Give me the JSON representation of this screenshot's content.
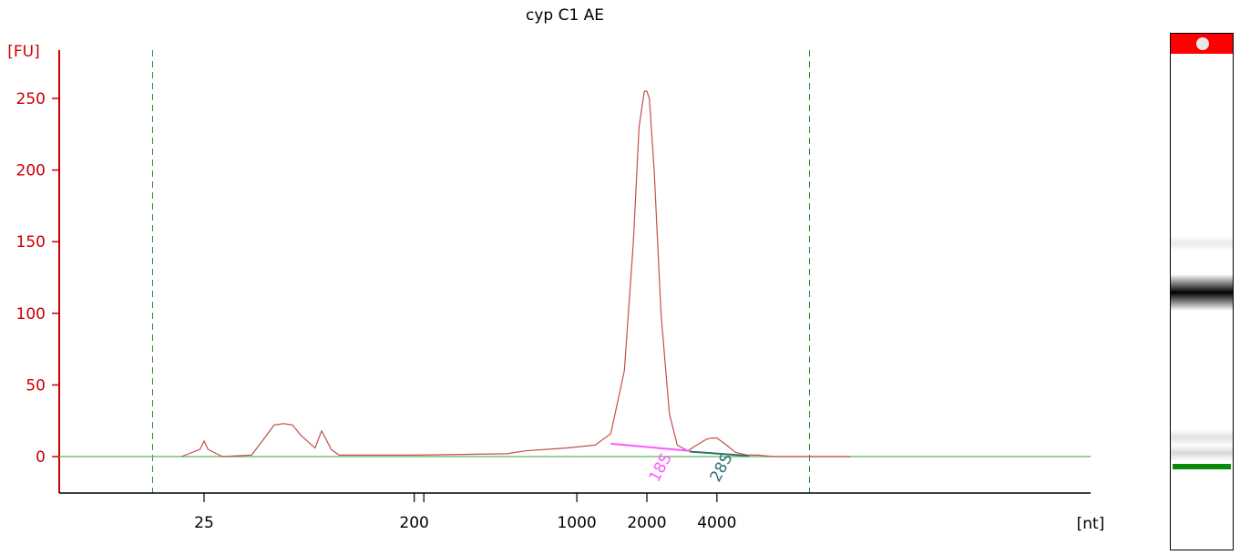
{
  "colors": {
    "axis": "#cc0000",
    "trace": "#c0504d",
    "baseline": "#5fb35f",
    "region_18s": "#ff55ff",
    "region_28s": "#2f6f6f",
    "window_lines": "#2e8b2e",
    "gel_top_marker": "#ff0000",
    "gel_lower_marker": "#0a8a0a"
  },
  "chart_data": {
    "type": "line",
    "title": "cyp C1 AE",
    "ylabel": "[FU]",
    "xlabel": "[nt]",
    "x_scale": "log",
    "ylim": [
      -25,
      280
    ],
    "grid": false,
    "legend": "none",
    "y_ticks": [
      0,
      50,
      100,
      150,
      200,
      250
    ],
    "x_ticks": [
      {
        "value": 25,
        "label": "25"
      },
      {
        "value": 200,
        "label": "200"
      },
      {
        "value": 1000,
        "label": "1000"
      },
      {
        "value": 2000,
        "label": "2000"
      },
      {
        "value": 4000,
        "label": "4000"
      }
    ],
    "x_minor_ticks": [
      220
    ],
    "analysis_window": [
      15,
      10000
    ],
    "series": [
      {
        "x": [
          20,
          24,
          25,
          26,
          30,
          40,
          45,
          50,
          55,
          60,
          65,
          75,
          80,
          88,
          95,
          100,
          110,
          200,
          500,
          600,
          900,
          1200,
          1400,
          1600,
          1750,
          1850,
          1950,
          2000,
          2050,
          2150,
          2300,
          2500,
          2700,
          3000,
          3200,
          3600,
          3800,
          4000,
          4400,
          4800,
          5400,
          6000,
          6500,
          7000,
          10500,
          15000
        ],
        "y": [
          0,
          5,
          11,
          5,
          0,
          1,
          12,
          22,
          23,
          22,
          15,
          6,
          18,
          5,
          1,
          1,
          1,
          1,
          2,
          4,
          6,
          8,
          16,
          60,
          150,
          230,
          255,
          255,
          250,
          200,
          100,
          30,
          8,
          4,
          7,
          12,
          13,
          13,
          8,
          3,
          1,
          1,
          0.5,
          0,
          0,
          0
        ]
      }
    ],
    "regions": [
      {
        "name": "18S",
        "x": [
          1400,
          3050
        ],
        "y_start": 9,
        "y_end": 4
      },
      {
        "name": "28S",
        "x": [
          3050,
          5500
        ],
        "y_start": 3.5,
        "y_end": 0.5
      }
    ]
  },
  "gel": {
    "bands": [
      {
        "position": 0.405,
        "intensity": 0.08
      },
      {
        "position": 0.5,
        "intensity": 1.0
      },
      {
        "position": 0.78,
        "intensity": 0.12
      },
      {
        "position": 0.81,
        "intensity": 0.15
      }
    ]
  }
}
